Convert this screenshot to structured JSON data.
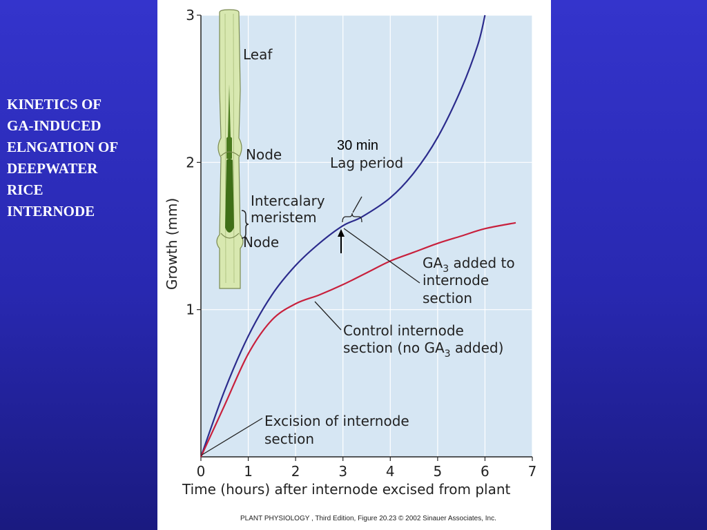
{
  "slide": {
    "title_lines": [
      "KINETICS OF",
      "GA-INDUCED",
      "ELNGATION OF",
      "DEEPWATER",
      "RICE",
      "INTERNODE"
    ]
  },
  "colors": {
    "background": "#2f2fc4",
    "plot_bg": "#d6e6f3",
    "gridline": "#ffffff",
    "ga3_curve": "#2b2b8c",
    "control_curve": "#c8203c",
    "stem_light": "#d8e8b0",
    "stem_dark": "#4a7a1e"
  },
  "chart_data": {
    "type": "line",
    "title": "",
    "xlabel": "Time (hours) after internode excised from plant",
    "ylabel": "Growth (mm)",
    "xlim": [
      0,
      7
    ],
    "ylim": [
      0,
      3
    ],
    "xticks": [
      "0",
      "1",
      "2",
      "3",
      "4",
      "5",
      "6",
      "7"
    ],
    "yticks": [
      "1",
      "2",
      "3"
    ],
    "grid": true,
    "series": [
      {
        "name": "GA3 added to internode section",
        "color": "#2b2b8c",
        "points": [
          [
            0,
            0
          ],
          [
            0.5,
            0.45
          ],
          [
            1,
            0.82
          ],
          [
            1.5,
            1.1
          ],
          [
            2,
            1.3
          ],
          [
            2.5,
            1.45
          ],
          [
            3,
            1.57
          ],
          [
            3.4,
            1.63
          ],
          [
            4,
            1.76
          ],
          [
            4.5,
            1.93
          ],
          [
            5,
            2.17
          ],
          [
            5.5,
            2.5
          ],
          [
            5.85,
            2.8
          ],
          [
            6,
            3.0
          ]
        ]
      },
      {
        "name": "Control internode section (no GA3 added)",
        "color": "#c8203c",
        "points": [
          [
            0,
            0
          ],
          [
            0.5,
            0.35
          ],
          [
            1,
            0.7
          ],
          [
            1.5,
            0.93
          ],
          [
            2,
            1.04
          ],
          [
            2.5,
            1.1
          ],
          [
            3,
            1.17
          ],
          [
            3.5,
            1.25
          ],
          [
            4,
            1.33
          ],
          [
            4.5,
            1.39
          ],
          [
            5,
            1.45
          ],
          [
            5.5,
            1.5
          ],
          [
            6,
            1.55
          ],
          [
            6.65,
            1.59
          ]
        ]
      }
    ],
    "annotations": {
      "leaf": "Leaf",
      "node_upper": "Node",
      "meristem_line1": "Intercalary",
      "meristem_line2": "meristem",
      "node_lower": "Node",
      "lag_minutes": "30 min",
      "lag_label": "Lag period",
      "ga3_label_line1_prefix": "GA",
      "ga3_label_line1_sub": "3",
      "ga3_label_line1_suffix": " added to",
      "ga3_label_line2": "internode",
      "ga3_label_line3": "section",
      "control_label_line1": "Control internode",
      "control_label_line2_prefix": "section (no GA",
      "control_label_line2_sub": "3",
      "control_label_line2_suffix": " added)",
      "excision_line1": "Excision of internode",
      "excision_line2": "section"
    },
    "credit": "PLANT PHYSIOLOGY , Third Edition, Figure 20.23  © 2002 Sinauer Associates, Inc."
  }
}
